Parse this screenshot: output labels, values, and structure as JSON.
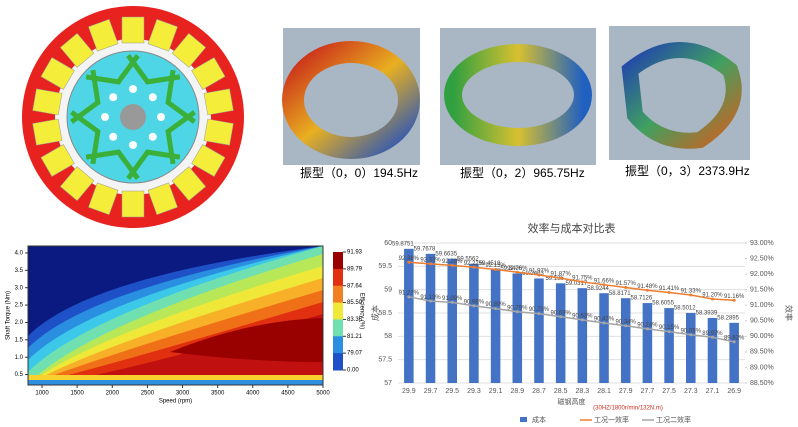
{
  "mode_captions": [
    "振型（0，0）194.5Hz",
    "振型（0，2）965.75Hz",
    "振型（0，3）2373.9Hz"
  ],
  "chart_data": [
    {
      "type": "contour",
      "x_label": "Speed (rpm)",
      "y_label": "Shaft Torque (Nm)",
      "colorbar_label": "Efficiency (%)",
      "xlim": [
        800,
        5000
      ],
      "ylim": [
        0.2,
        4.2
      ],
      "xticks": [
        1000,
        1500,
        2000,
        2500,
        3000,
        3500,
        4000,
        4500,
        5000
      ],
      "yticks": [
        0.5,
        {
          "value": 1,
          "label": "1.0"
        },
        1.5,
        {
          "value": 2,
          "label": "2.0"
        },
        2.5,
        {
          "value": 3,
          "label": "3.0"
        },
        3.5,
        {
          "value": 4,
          "label": "4.0"
        }
      ],
      "colorbar_ticks": [
        91.93,
        89.79,
        87.64,
        {
          "value": 85.5,
          "label": "85.50"
        },
        83.36,
        81.21,
        79.07,
        {
          "value": 0,
          "label": "0.00"
        }
      ]
    },
    {
      "type": "bar_line",
      "title": "效率与成本对比表",
      "x_label": "磁钢高度",
      "y_label": "成本",
      "y2_label": "效率",
      "annotation": "(30HZ/1800r/min/132N.m)",
      "categories": [
        "29.9",
        "29.7",
        "29.5",
        "29.3",
        "29.1",
        "28.9",
        "28.7",
        "28.5",
        "28.3",
        "28.1",
        "27.9",
        "27.7",
        "27.5",
        "27.3",
        "27.1",
        "26.9"
      ],
      "ylim": [
        57,
        60
      ],
      "yticks": [
        57,
        57.5,
        58,
        58.5,
        59,
        59.5,
        60
      ],
      "y2lim": [
        88.5,
        93
      ],
      "y2ticks": [
        {
          "value": 88.5,
          "label": "88.50%"
        },
        {
          "value": 89,
          "label": "89.00%"
        },
        {
          "value": 89.5,
          "label": "89.50%"
        },
        {
          "value": 90,
          "label": "90.00%"
        },
        {
          "value": 90.5,
          "label": "90.50%"
        },
        {
          "value": 91,
          "label": "91.00%"
        },
        {
          "value": 91.5,
          "label": "91.50%"
        },
        {
          "value": 92,
          "label": "92.00%"
        },
        {
          "value": 92.5,
          "label": "92.50%"
        },
        {
          "value": 93,
          "label": "93.00%"
        }
      ],
      "series": [
        {
          "name": "成本",
          "color": "#4472c4",
          "type": "bar",
          "values": [
            59.8751,
            59.7678,
            59.6635,
            59.5562,
            59.4519,
            59.3476,
            59.2403,
            59.136,
            59.0317,
            58.9244,
            58.8171,
            58.7126,
            58.6055,
            58.5012,
            58.3939,
            58.2895
          ]
        },
        {
          "name": "工况一效率",
          "color": "#ed7d31",
          "type": "line",
          "axis": "y2",
          "values": [
            92.38,
            92.33,
            92.28,
            92.22,
            92.15,
            92.06,
            91.97,
            91.87,
            91.75,
            91.66,
            91.57,
            91.48,
            91.41,
            91.33,
            91.2,
            91.16
          ],
          "value_labels": [
            "92.38%",
            "92.33%",
            "92.28%",
            "92.22%",
            "92.15%",
            "92.06%",
            "91.97%",
            "91.87%",
            "91.75%",
            "91.66%",
            "91.57%",
            "91.48%",
            "91.41%",
            "91.33%",
            "91.20%",
            "91.16%"
          ]
        },
        {
          "name": "工况二效率",
          "color": "#a5a5a5",
          "type": "line",
          "axis": "y2",
          "values": [
            91.27,
            91.13,
            91.09,
            90.98,
            90.89,
            90.79,
            90.73,
            90.63,
            90.53,
            90.43,
            90.34,
            90.24,
            90.15,
            90.05,
            89.97,
            89.82
          ],
          "value_labels": [
            "91.27%",
            "91.13%",
            "91.09%",
            "90.98%",
            "90.89%",
            "90.79%",
            "90.73%",
            "90.63%",
            "90.53%",
            "90.43%",
            "90.34%",
            "90.24%",
            "90.15%",
            "90.05%",
            "89.97%",
            "89.82%"
          ]
        }
      ]
    }
  ]
}
